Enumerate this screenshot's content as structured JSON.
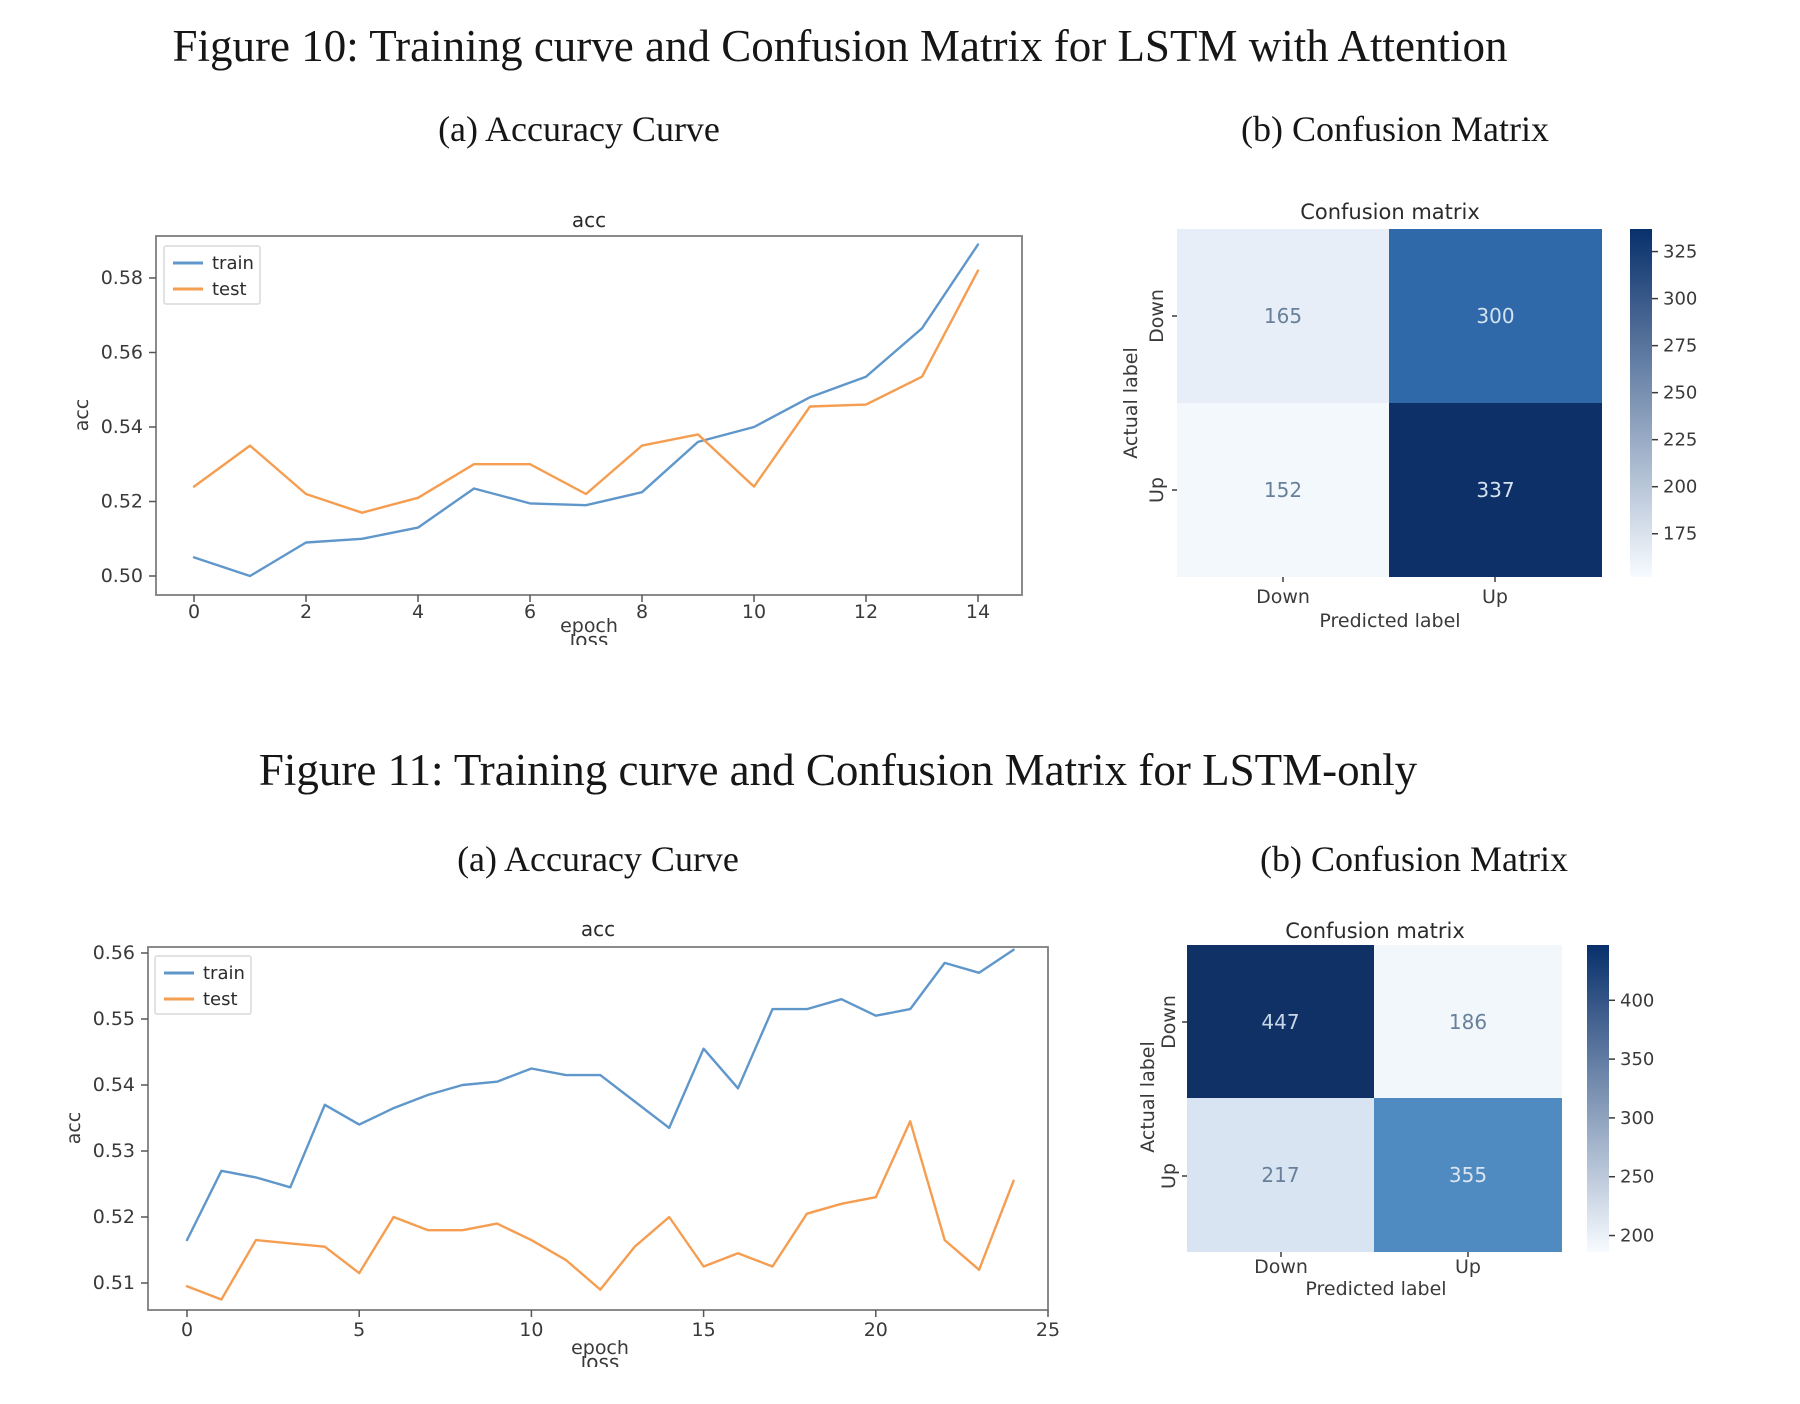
{
  "figure10": {
    "caption": "Figure 10: Training curve and Confusion Matrix for LSTM with Attention",
    "sub_a": "(a) Accuracy Curve",
    "sub_b": "(b) Confusion Matrix"
  },
  "figure11": {
    "caption": "Figure 11: Training curve and Confusion Matrix for LSTM-only",
    "sub_a": "(a) Accuracy Curve",
    "sub_b": "(b) Confusion Matrix"
  },
  "chart_data": [
    {
      "id": "acc-curve-lstm-attention",
      "type": "line",
      "title": "acc",
      "xlabel": "epoch",
      "partially_visible_text_below": "loss",
      "ylabel": "acc",
      "x": [
        0,
        1,
        2,
        3,
        4,
        5,
        6,
        7,
        8,
        9,
        10,
        11,
        12,
        13,
        14
      ],
      "xticks": [
        0,
        2,
        4,
        6,
        8,
        10,
        12,
        14
      ],
      "yticks": [
        "0.50",
        "0.52",
        "0.54",
        "0.56",
        "0.58"
      ],
      "xlim": [
        -0.68,
        14.8
      ],
      "ylim": [
        0.4949,
        0.5913
      ],
      "grid": false,
      "legend_position": "upper left",
      "series": [
        {
          "name": "train",
          "color": "#5f97cb",
          "values": [
            0.505,
            0.5,
            0.509,
            0.51,
            0.513,
            0.5235,
            0.5195,
            0.519,
            0.5225,
            0.536,
            0.54,
            0.548,
            0.5535,
            0.5665,
            0.589
          ]
        },
        {
          "name": "test",
          "color": "#f59d50",
          "values": [
            0.524,
            0.535,
            0.522,
            0.517,
            0.521,
            0.53,
            0.53,
            0.522,
            0.535,
            0.538,
            0.524,
            0.5455,
            0.546,
            0.5535,
            0.582
          ]
        }
      ]
    },
    {
      "id": "confusion-matrix-lstm-attention",
      "type": "heatmap",
      "title": "Confusion matrix",
      "xlabel": "Predicted label",
      "ylabel": "Actual label",
      "row_labels": [
        "Down",
        "Up"
      ],
      "col_labels": [
        "Down",
        "Up"
      ],
      "values": [
        [
          165,
          300
        ],
        [
          152,
          337
        ]
      ],
      "cell_colors": [
        [
          "#e7eef7",
          "#3069aa"
        ],
        [
          "#f3f8fc",
          "#0d3068"
        ]
      ],
      "cell_text_colors": [
        [
          "#69809a",
          "#d5e2f0"
        ],
        [
          "#69809a",
          "#d5e2f0"
        ]
      ],
      "colorbar": {
        "vmin": 152,
        "vmax": 337,
        "ticks": [
          175,
          200,
          225,
          250,
          275,
          300,
          325
        ],
        "color_low": "#f7fbff",
        "color_high": "#08306b"
      }
    },
    {
      "id": "acc-curve-lstm-only",
      "type": "line",
      "title": "acc",
      "xlabel": "epoch",
      "partially_visible_text_below": "loss",
      "ylabel": "acc",
      "x": [
        0,
        1,
        2,
        3,
        4,
        5,
        6,
        7,
        8,
        9,
        10,
        11,
        12,
        13,
        14,
        15,
        16,
        17,
        18,
        19,
        20,
        21,
        22,
        23,
        24
      ],
      "xticks": [
        0,
        5,
        10,
        15,
        20,
        25
      ],
      "yticks": [
        "0.51",
        "0.52",
        "0.53",
        "0.54",
        "0.55",
        "0.56"
      ],
      "xlim": [
        -1.1,
        25.0
      ],
      "ylim": [
        0.5059,
        0.5609
      ],
      "grid": false,
      "legend_position": "upper left",
      "series": [
        {
          "name": "train",
          "color": "#5f97cb",
          "values": [
            0.5165,
            0.527,
            0.526,
            0.5245,
            0.537,
            0.534,
            0.5365,
            0.5385,
            0.54,
            0.5405,
            0.5425,
            0.5415,
            0.5415,
            0.5375,
            0.5335,
            0.5455,
            0.5395,
            0.5515,
            0.5515,
            0.553,
            0.5505,
            0.5515,
            0.5585,
            0.557,
            0.5605
          ]
        },
        {
          "name": "test",
          "color": "#f59d50",
          "values": [
            0.5095,
            0.5075,
            0.5165,
            0.516,
            0.5155,
            0.5115,
            0.52,
            0.518,
            0.518,
            0.519,
            0.5165,
            0.5135,
            0.509,
            0.5155,
            0.52,
            0.5125,
            0.5145,
            0.5125,
            0.5205,
            0.522,
            0.523,
            0.5345,
            0.5165,
            0.512,
            0.5255
          ]
        }
      ]
    },
    {
      "id": "confusion-matrix-lstm-only",
      "type": "heatmap",
      "title": "Confusion matrix",
      "xlabel": "Predicted label",
      "ylabel": "Actual label",
      "row_labels": [
        "Down",
        "Up"
      ],
      "col_labels": [
        "Down",
        "Up"
      ],
      "values": [
        [
          447,
          186
        ],
        [
          217,
          355
        ]
      ],
      "cell_colors": [
        [
          "#0f3166",
          "#f2f7fc"
        ],
        [
          "#d8e4f1",
          "#4f8ac0"
        ]
      ],
      "cell_text_colors": [
        [
          "#c8d6e8",
          "#69809a"
        ],
        [
          "#69809a",
          "#dae5f1"
        ]
      ],
      "colorbar": {
        "vmin": 186,
        "vmax": 447,
        "ticks": [
          200,
          250,
          300,
          350,
          400
        ],
        "color_low": "#f7fbff",
        "color_high": "#08306b"
      }
    }
  ]
}
